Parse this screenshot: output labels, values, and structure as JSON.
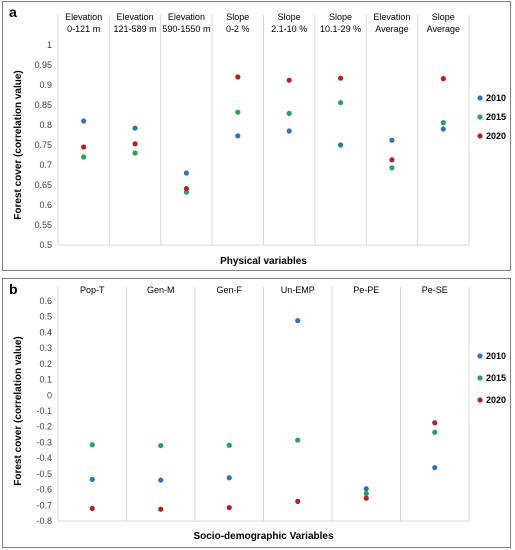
{
  "chart_data": [
    {
      "panel_label": "a",
      "type": "scatter",
      "categories": [
        "Elevation\n0-121 m",
        "Elevation\n121-589 m",
        "Elevation\n590-1550 m",
        "Slope\n0-2 %",
        "Slope\n2.1-10 %",
        "Slope\n10.1-29 %",
        "Elevation\nAverage",
        "Slope\nAverage"
      ],
      "series": [
        {
          "name": "2010",
          "color": "#2e75b6",
          "values": [
            0.81,
            0.792,
            0.68,
            0.773,
            0.785,
            0.75,
            0.762,
            0.79
          ]
        },
        {
          "name": "2015",
          "color": "#2ca05a",
          "values": [
            0.72,
            0.73,
            0.632,
            0.832,
            0.829,
            0.856,
            0.693,
            0.806
          ]
        },
        {
          "name": "2020",
          "color": "#b22222",
          "values": [
            0.745,
            0.753,
            0.641,
            0.92,
            0.912,
            0.917,
            0.713,
            0.916
          ]
        }
      ],
      "xlabel": "Physical variables",
      "ylabel": "Forest cover (correlation value)",
      "ylim": [
        0.5,
        1
      ],
      "yticks": [
        0.5,
        0.55,
        0.6,
        0.65,
        0.7,
        0.75,
        0.8,
        0.85,
        0.9,
        0.95,
        1
      ],
      "ytick_labels": [
        "0.5",
        "0.55",
        "0.6",
        "0.65",
        "0.7",
        "0.75",
        "0.8",
        "0.85",
        "0.9",
        "0.95",
        "1"
      ],
      "category_labels_position": "top",
      "legend_position": "right",
      "grid": "vertical"
    },
    {
      "panel_label": "b",
      "type": "scatter",
      "categories": [
        "Pop-T",
        "Gen-M",
        "Gen-F",
        "Un-EMP",
        "Pe-PE",
        "Pe-SE"
      ],
      "series": [
        {
          "name": "2010",
          "color": "#2e75b6",
          "values": [
            -0.535,
            -0.54,
            -0.525,
            0.475,
            -0.595,
            -0.46
          ]
        },
        {
          "name": "2015",
          "color": "#2ca05a",
          "values": [
            -0.315,
            -0.32,
            -0.318,
            -0.285,
            -0.625,
            -0.235
          ]
        },
        {
          "name": "2020",
          "color": "#b22222",
          "values": [
            -0.72,
            -0.725,
            -0.715,
            -0.675,
            -0.655,
            -0.175
          ]
        }
      ],
      "xlabel": "Socio-demographic Variables",
      "ylabel": "Forest cover (correlation value)",
      "ylim": [
        -0.8,
        0.6
      ],
      "yticks": [
        -0.8,
        -0.7,
        -0.6,
        -0.5,
        -0.4,
        -0.3,
        -0.2,
        -0.1,
        0,
        0.1,
        0.2,
        0.3,
        0.4,
        0.5,
        0.6
      ],
      "ytick_labels": [
        "-0.8",
        "-0.7",
        "-0.6",
        "-0.5",
        "-0.4",
        "-0.3",
        "-0.2",
        "-0.1",
        "0",
        "0.1",
        "0.2",
        "0.3",
        "0.4",
        "0.5",
        "0.6"
      ],
      "category_labels_position": "top",
      "legend_position": "right",
      "grid": "vertical"
    }
  ]
}
